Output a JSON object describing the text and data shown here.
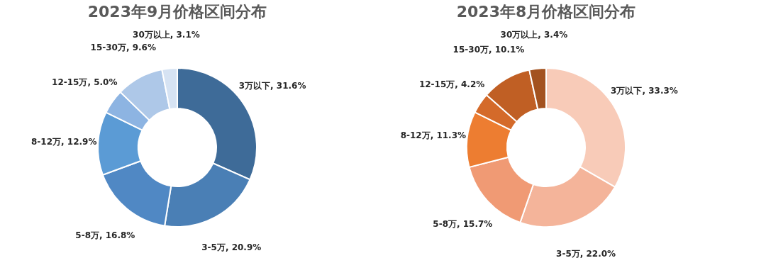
{
  "chart_data": [
    {
      "type": "donut",
      "title": "2023年9月价格区间分布",
      "categories": [
        "3万以下",
        "3-5万",
        "5-8万",
        "8-12万",
        "12-15万",
        "15-30万",
        "30万以上"
      ],
      "values": [
        31.6,
        20.9,
        16.8,
        12.9,
        5.0,
        9.6,
        3.1
      ],
      "value_labels": [
        "31.6%",
        "20.9%",
        "16.8%",
        "12.9%",
        "5.0%",
        "9.6%",
        "3.1%"
      ],
      "colors": [
        "#3e6b98",
        "#4a7fb5",
        "#5088c4",
        "#5b9bd5",
        "#8db4e2",
        "#aec8e8",
        "#d6e3f3"
      ],
      "legend": false
    },
    {
      "type": "donut",
      "title": "2023年8月价格区间分布",
      "categories": [
        "3万以下",
        "3-5万",
        "5-8万",
        "8-12万",
        "12-15万",
        "15-30万",
        "30万以上"
      ],
      "values": [
        33.3,
        22.0,
        15.7,
        11.3,
        4.2,
        10.1,
        3.4
      ],
      "value_labels": [
        "33.3%",
        "22.0%",
        "15.7%",
        "11.3%",
        "4.2%",
        "10.1%",
        "3.4%"
      ],
      "colors": [
        "#f8cbb8",
        "#f4b49a",
        "#f09a74",
        "#ed7d31",
        "#d46a2a",
        "#c05f24",
        "#a3521f"
      ],
      "legend": false
    }
  ]
}
